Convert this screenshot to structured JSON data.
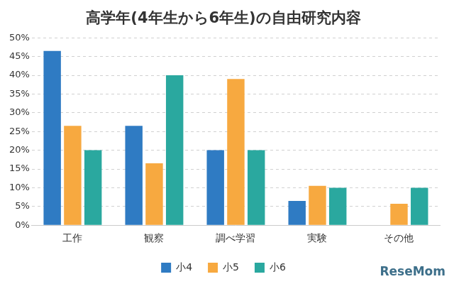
{
  "chart_data": {
    "type": "bar",
    "title": "高学年(4年生から6年生)の自由研究内容",
    "categories": [
      "工作",
      "観察",
      "調べ学習",
      "実験",
      "その他"
    ],
    "series": [
      {
        "name": "小4",
        "color": "#2f7bc3",
        "values": [
          46.5,
          26.5,
          20,
          6.5,
          0
        ]
      },
      {
        "name": "小5",
        "color": "#f7a940",
        "values": [
          26.5,
          16.5,
          39,
          10.5,
          5.7
        ]
      },
      {
        "name": "小6",
        "color": "#2aa89f",
        "values": [
          20,
          40,
          20,
          10,
          10
        ]
      }
    ],
    "ylim": [
      0,
      50
    ],
    "yticks": [
      {
        "value": 0,
        "label": "0%"
      },
      {
        "value": 5,
        "label": "5%"
      },
      {
        "value": 10,
        "label": "10%"
      },
      {
        "value": 15,
        "label": "15%"
      },
      {
        "value": 20,
        "label": "20%"
      },
      {
        "value": 25,
        "label": "25%"
      },
      {
        "value": 30,
        "label": "30%"
      },
      {
        "value": 35,
        "label": "35%"
      },
      {
        "value": 40,
        "label": "40%"
      },
      {
        "value": 45,
        "label": "45%"
      },
      {
        "value": 50,
        "label": "50%"
      }
    ],
    "grid": true,
    "legend": "bottom",
    "annotations": [
      "ReseMom"
    ]
  }
}
